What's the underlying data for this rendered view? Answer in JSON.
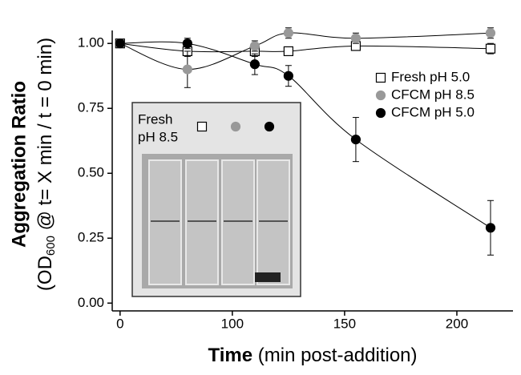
{
  "chart_data": {
    "type": "scatter",
    "x_label": [
      "Time",
      "(min post-addition)"
    ],
    "y_label": [
      "Aggregation Ratio",
      "(OD",
      "600",
      " @ t= X min / t = 0 min)"
    ],
    "x": [
      0,
      60,
      110,
      125,
      155,
      215
    ],
    "series": [
      {
        "name": "Fresh pH 5.0",
        "color": "#ffffff",
        "marker": "square",
        "values": [
          1.0,
          0.97,
          0.97,
          0.97,
          0.99,
          0.98
        ],
        "errors": [
          0.01,
          0.02,
          0.02,
          0.015,
          0.01,
          0.02
        ]
      },
      {
        "name": "CFCM pH 8.5",
        "color": "#999999",
        "marker": "circle",
        "values": [
          1.0,
          0.9,
          0.99,
          1.04,
          1.02,
          1.04
        ],
        "errors": [
          0.01,
          0.07,
          0.02,
          0.02,
          0.02,
          0.02
        ]
      },
      {
        "name": "CFCM pH 5.0",
        "color": "#000000",
        "marker": "circle",
        "values": [
          1.0,
          1.0,
          0.92,
          0.875,
          0.63,
          0.29
        ],
        "errors": [
          0.01,
          0.02,
          0.04,
          0.04,
          0.085,
          0.105
        ]
      }
    ],
    "xlim": [
      -7,
      225
    ],
    "xticks": [
      0,
      100,
      150,
      200
    ],
    "ylim": [
      -0.03,
      1.05
    ],
    "yticks": [
      {
        "value": 0,
        "label": "0.00"
      },
      0.25,
      {
        "value": 0.5,
        "label": "0.50"
      },
      0.75,
      {
        "value": 1,
        "label": "1.00"
      }
    ],
    "legend": "upper right",
    "inset_label": [
      "Fresh",
      "pH 8.5"
    ]
  }
}
